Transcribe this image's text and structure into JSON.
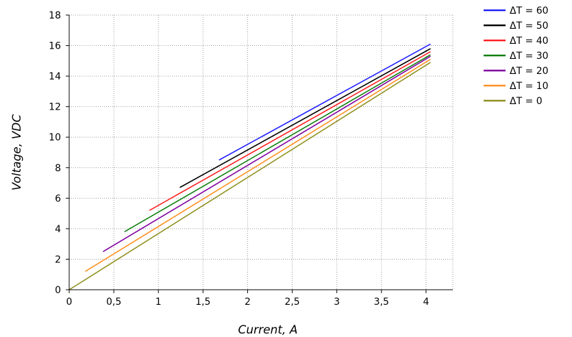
{
  "chart_data": {
    "type": "line",
    "xlabel": "Current, A",
    "ylabel": "Voltage, VDC",
    "xlim": [
      0,
      4.3
    ],
    "ylim": [
      0,
      18
    ],
    "x_ticks": [
      "0",
      "0,5",
      "1",
      "1,5",
      "2",
      "2,5",
      "3",
      "3,5",
      "4"
    ],
    "y_ticks": [
      "0",
      "2",
      "4",
      "6",
      "8",
      "10",
      "12",
      "14",
      "16",
      "18"
    ],
    "grid": true,
    "legend_position": "right",
    "series": [
      {
        "name": "ΔT = 60",
        "color": "#2020ff",
        "x": [
          1.68,
          4.05
        ],
        "y": [
          8.5,
          16.1
        ]
      },
      {
        "name": "ΔT = 50",
        "color": "#000000",
        "x": [
          1.24,
          4.05
        ],
        "y": [
          6.7,
          15.8
        ]
      },
      {
        "name": "ΔT = 40",
        "color": "#ff2020",
        "x": [
          0.9,
          4.05
        ],
        "y": [
          5.2,
          15.6
        ]
      },
      {
        "name": "ΔT = 30",
        "color": "#108010",
        "x": [
          0.62,
          4.05
        ],
        "y": [
          3.8,
          15.4
        ]
      },
      {
        "name": "ΔT = 20",
        "color": "#8000a0",
        "x": [
          0.38,
          4.05
        ],
        "y": [
          2.5,
          15.3
        ]
      },
      {
        "name": "ΔT = 10",
        "color": "#ff9020",
        "x": [
          0.18,
          4.05
        ],
        "y": [
          1.2,
          15.1
        ]
      },
      {
        "name": "ΔT = 0",
        "color": "#909020",
        "x": [
          0.0,
          4.05
        ],
        "y": [
          0.0,
          14.9
        ]
      }
    ]
  }
}
